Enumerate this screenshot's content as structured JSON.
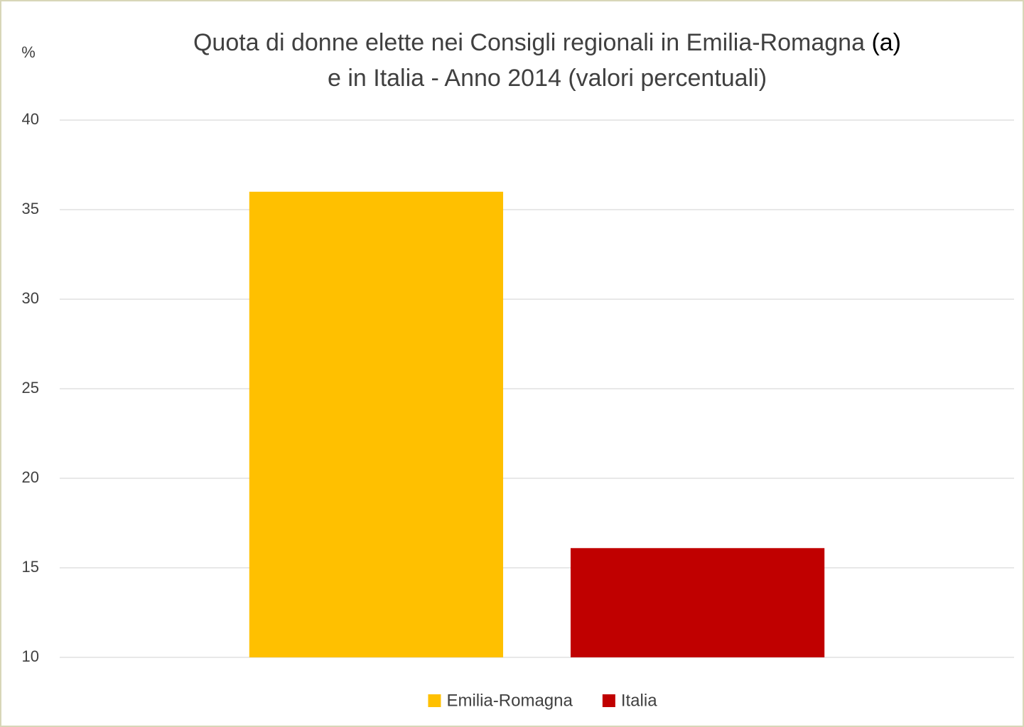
{
  "chart_data": {
    "type": "bar",
    "title": [
      "Quota di donne elette nei Consigli regionali in Emilia-Romagna",
      "e in Italia - Anno 2014 (valori percentuali)"
    ],
    "title_note": "(a)",
    "y_label": "%",
    "categories": [
      null
    ],
    "series": [
      {
        "name": "Emilia-Romagna",
        "color": "#ffc000",
        "values": [
          36
        ]
      },
      {
        "name": "Italia",
        "color": "#c00000",
        "values": [
          16.1
        ]
      }
    ],
    "ylim": [
      10,
      40
    ],
    "yticks": [
      10,
      15,
      20,
      25,
      30,
      35,
      40
    ],
    "grid": true,
    "legend": "bottom"
  }
}
